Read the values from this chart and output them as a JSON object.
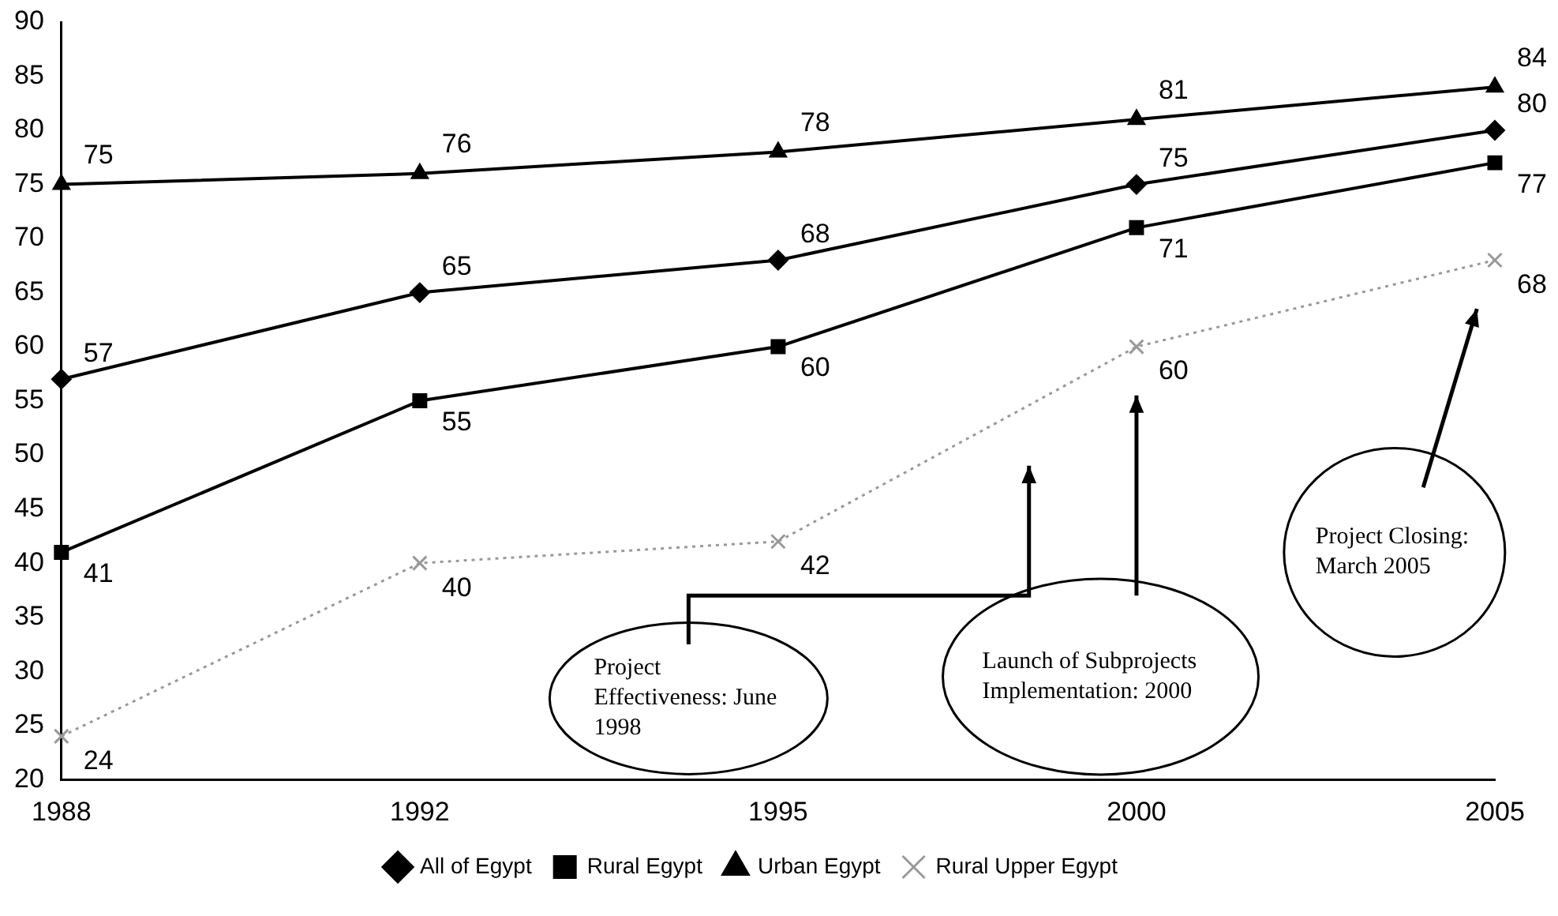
{
  "chart_data": {
    "type": "line",
    "categories": [
      "1988",
      "1992",
      "1995",
      "2000",
      "2005"
    ],
    "series": [
      {
        "name": "All of Egypt",
        "color": "#000000",
        "marker": "diamond",
        "values": [
          57,
          65,
          68,
          75,
          80
        ]
      },
      {
        "name": "Rural Egypt",
        "color": "#000000",
        "marker": "square",
        "values": [
          41,
          55,
          60,
          71,
          77
        ]
      },
      {
        "name": "Urban Egypt",
        "color": "#000000",
        "marker": "triangle",
        "values": [
          75,
          76,
          78,
          81,
          84
        ]
      },
      {
        "name": "Rural Upper Egypt",
        "color": "#999999",
        "marker": "cross",
        "line_style": "dotted",
        "values": [
          24,
          40,
          42,
          60,
          68
        ]
      }
    ],
    "ylim": [
      20,
      90
    ],
    "yticks": [
      20,
      25,
      30,
      35,
      40,
      45,
      50,
      55,
      60,
      65,
      70,
      75,
      80,
      85,
      90
    ],
    "grid": false,
    "legend": "bottom",
    "data_labels": true,
    "annotations": [
      "Project Effectiveness: June 1998",
      "Launch of Subprojects Implementation: 2000",
      "Project Closing: March 2005"
    ]
  }
}
